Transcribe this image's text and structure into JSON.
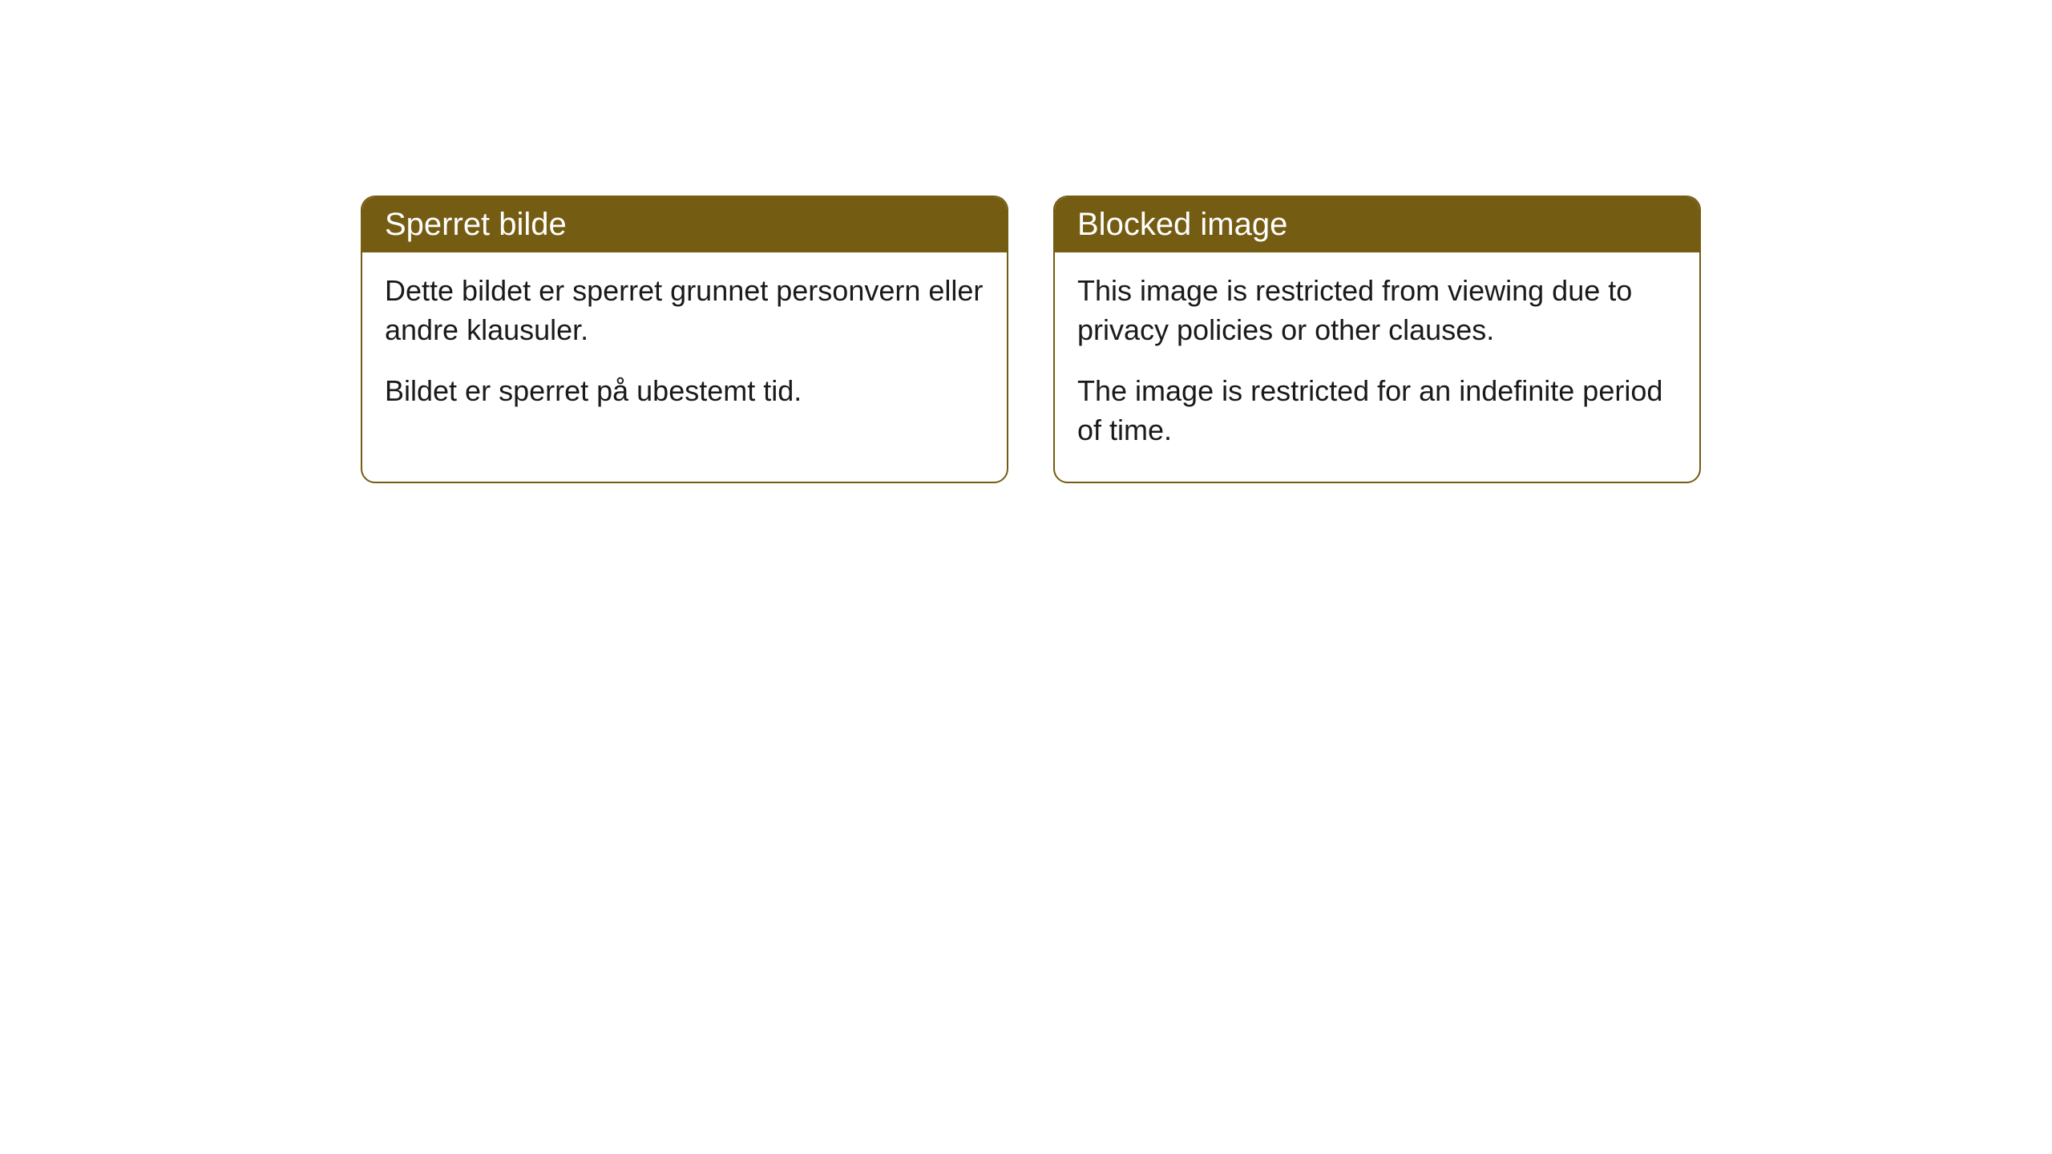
{
  "cards": [
    {
      "title": "Sperret bilde",
      "paragraph1": "Dette bildet er sperret grunnet personvern eller andre klausuler.",
      "paragraph2": "Bildet er sperret på ubestemt tid."
    },
    {
      "title": "Blocked image",
      "paragraph1": "This image is restricted from viewing due to privacy policies or other clauses.",
      "paragraph2": "The image is restricted for an indefinite period of time."
    }
  ],
  "styling": {
    "header_bg_color": "#755c13",
    "header_text_color": "#ffffff",
    "border_color": "#755c13",
    "body_bg_color": "#ffffff",
    "body_text_color": "#1a1a1a",
    "border_radius": 18,
    "title_fontsize": 40,
    "body_fontsize": 36
  }
}
